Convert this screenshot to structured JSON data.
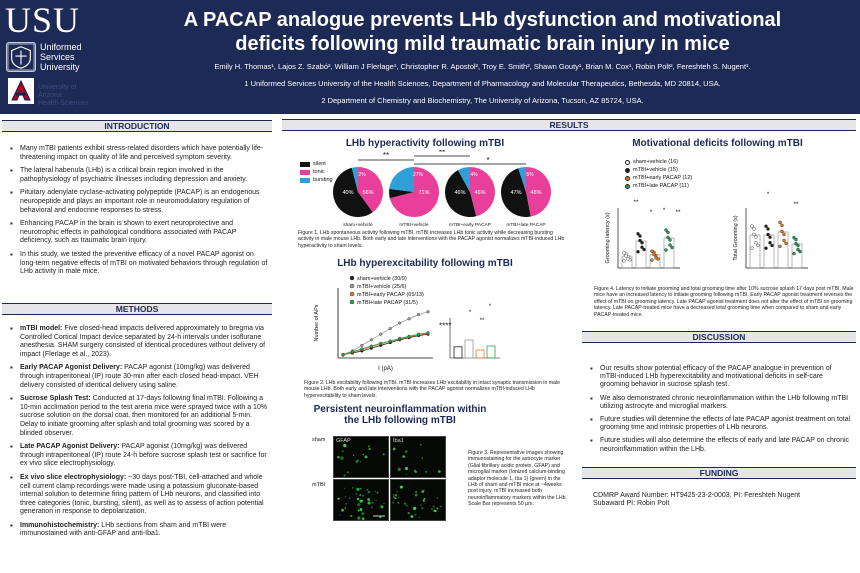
{
  "header": {
    "logo_text": "USU",
    "logo_subtext": [
      "Uniformed",
      "Services",
      "University"
    ],
    "ua_text": [
      "University of Arizona",
      "Health Sciences"
    ],
    "title_line1": "A PACAP analogue prevents LHb dysfunction and motivational",
    "title_line2": "deficits following mild traumatic brain injury in mice",
    "authors": "Emily H. Thomas¹, Lajos Z. Szabó², William J Flerlage¹, Christopher R. Apostol², Troy E. Smith², Shawn Gouty¹, Brian M. Cox¹, Robin Polt², Fereshteh S. Nugent¹.",
    "affiliation1": "1 Uniformed Services University of the Health Sciences, Department of Pharmacology and Molecular Therapeutics, Bethesda, MD 20814, USA.",
    "affiliation2": "2 Department of Chemistry and Biochemistry, The University of Arizona, Tucson, AZ 85724, USA."
  },
  "sections": {
    "introduction": "INTRODUCTION",
    "methods": "METHODS",
    "results": "RESULTS",
    "discussion": "DISCUSSION",
    "funding": "FUNDING"
  },
  "introduction": [
    "Many mTBI patients exhibit stress-related disorders which have potentially life-threatening impact on quality of life and perceived symptom severity.",
    "The lateral habenula (LHb) is a critical brain region involved in the pathophysiology of psychiatric illnesses including depression and anxiety.",
    "Pituitary adenylate cyclase-activating polypeptide (PACAP) is an endogenous neuropeptide and plays an important role in neuromodulatory regulation of behavioral and endocrine responses to stress.",
    "Enhancing PACAP in the brain is shown to exert neuroprotective and neurotrophic effects in pathological conditions associated with PACAP deficiency, such as traumatic brain injury.",
    "In this study, we tested the preventive efficacy of a novel PACAP agonist on long-term negative effects of mTBI on motivated behaviors through regulation of LHb activity in male mice."
  ],
  "methods": [
    {
      "lead": "mTBI model:",
      "text": " Five closed-head impacts delivered approximately to bregma via Controlled Cortical Impact device separated by 24-h intervals under isoflurane anesthesia. SHAM surgery consisted of identical procedures without delivery of impact (Flerlage et al., 2023)."
    },
    {
      "lead": "Early PACAP Agonist Delivery:",
      "text": " PACAP agonist (10mg/kg) was delivered through intraperitoneal (IP) route 30-min after each closed head-impact. VEH delivery consisted of identical delivery using saline."
    },
    {
      "lead": "Sucrose Splash Test:",
      "text": " Conducted at 17-days following final mTBI. Following a 10-min acclimation period to the test arena mice were sprayed twice with a 10% sucrose solution on the dorsal coat, then monitored for an additional 5-min. Delay to initiate grooming after splash and total grooming was scored by a blinded observer."
    },
    {
      "lead": "Late PACAP Agonist Delivery:",
      "text": " PACAP agonist (10mg/kg) was delivered through intraperitoneal (IP) route 24-h before sucrose splash test or sacrifice for ex vivo slice electrophysiology."
    },
    {
      "lead": "Ex vivo slice electrophysiology:",
      "text": " ~30 days post-TBI, cell-attached and whole cell current clamp recordings were made using a potassium gluconate-based internal solution to determine firing pattern of LHb neurons, and classified into three categories (tonic, bursting, silent), as well as to assess of action potential generation in response to depolarization."
    },
    {
      "lead": "Immunohistochemistry:",
      "text": " LHb sections from sham and mTBI were immunostained with anti-GFAP and anti-Iba1."
    }
  ],
  "results": {
    "fig1_title": "LHb hyperactivity following mTBI",
    "fig1_legend": [
      "silent",
      "tonic",
      "bursting"
    ],
    "fig1_colors": {
      "silent": "#111111",
      "tonic": "#e8409a",
      "bursting": "#2f9fd8"
    },
    "fig1_pies": [
      {
        "label": "sham+vehicle",
        "silent": 56,
        "tonic": 40,
        "bursting": 4
      },
      {
        "label": "mTBI+vehicle",
        "silent": 6,
        "tonic": 71,
        "bursting": 23
      },
      {
        "label": "mTBI+early PACAP",
        "silent": 46,
        "tonic": 46,
        "bursting": 8
      },
      {
        "label": "mTBI+late PACAP",
        "silent": 48,
        "tonic": 47,
        "bursting": 5
      }
    ],
    "fig1_pie_texts": [
      [
        "56%",
        "40%",
        "4%"
      ],
      [
        "71%",
        "",
        "23%"
      ],
      [
        "46%",
        "46%",
        "8%"
      ],
      [
        "48%",
        "47%",
        "5%"
      ]
    ],
    "fig1_extra_labels": [
      "2%",
      "27%",
      "4%",
      "5%"
    ],
    "fig1_sig": [
      "**",
      "**",
      "*"
    ],
    "fig1_caption": "Figure 1. LHb spontaneous activity following mTBI. mTBI increases LHb tonic activity while decreasing bursting activity in male mouse LHb. Both early and late interventions with the PACAP agonist normalizes mTBI-induced LHb hyperactivity to sham levels.",
    "fig2_title": "LHb hyperexcitability following mTBI",
    "fig2_legend": [
      "sham+vehicle (30/9)",
      "mTBI+vehicle (25/6)",
      "mTBI+early PACAP (65/13)",
      "mTBI+late PACAP (31/5)"
    ],
    "fig2_colors": [
      "#222222",
      "#999999",
      "#e87a1e",
      "#2f9e5a"
    ],
    "fig2_ylabel": "Number of APs",
    "fig2_xlabel": "I (pA)",
    "fig2_sig": "****",
    "fig2_inset_sig": [
      "*",
      "**",
      "*"
    ],
    "fig2_caption": "Figure 2. LHb excitability following mTBI. mTBI increases LHb excitability in intact synaptic transmission in male mouse LHb. Both early and late interventions with the PACAP agonist normalizes mTBI-induced LHb hyperexcitability to sham levels.",
    "fig3_title_line1": "Persistent neuroinflammation within",
    "fig3_title_line2": "the LHb following mTBI",
    "fig3_row_labels": [
      "sham",
      "mTBI"
    ],
    "fig3_col_labels": [
      "GFAP",
      "Iba1"
    ],
    "fig3_caption": "Figure 3. Representative images showing immunostaining for the astrocyte marker (Glial fibrillary acidic protein, GFAP) and microglial marker (Ionized calcium-binding adaptor molecule 1, Iba 1) (green) in the LHb of sham and mTBI mice at ~4weeks post injury. mTBI increased both neuroinflammatory markers within the LHb. Scale Bar represents 50 µm.",
    "fig4_title": "Motivational deficits following mTBI",
    "fig4_legend": [
      "sham+vehicle (16)",
      "mTBI+vehicle (15)",
      "mTBI+early PACAP (12)",
      "mTBI+late PACAP (11)"
    ],
    "fig4_colors": [
      "#ffffff",
      "#222222",
      "#e87a1e",
      "#2f9e5a"
    ],
    "fig4_ylabel_left": "Grooming latency (s)",
    "fig4_ylabel_right": "Total Grooming (s)",
    "fig4_sig_left": [
      "**",
      "*",
      "*",
      "**"
    ],
    "fig4_sig_right": [
      "*",
      "**"
    ],
    "fig4_caption": "Figure 4. Latency to initiate grooming and total grooming time after 10% sucrose splash 17 days post mTBI. Male mice have an increased latency to initiate grooming following mTBI. Early PACAP agonist treatment reverses the effect of mTBI on grooming latency. Late PACAP agonist treatment does not alter the effect of mTBI on grooming latency. Late PACAP-treated mice have a decreased total grooming time when compared to sham and early PACAP-treated mice."
  },
  "discussion": [
    "Our results show potential efficacy of the PACAP analogue in prevention of mTBI-induced LHb hyperexcitability and motivational deficits in self-care grooming behavior in sucrose splash test.",
    "We also demonstrated chronic neuroinflammation within the LHb following mTBI utilizing astrocyte and microglial markers.",
    "Future studies will determine the effects of late PACAP agonist treatment on total grooming time and intrinsic properties of LHb neurons.",
    "Future studies will also determine the effects of early and late PACAP on chronic neuroinflammation within the LHb."
  ],
  "funding": {
    "line1": "CDMRP Award Number: HT9425-23-2-0003, PI: Fereshteh Nugent",
    "line2": "Subaward PI: Robin Polt"
  }
}
